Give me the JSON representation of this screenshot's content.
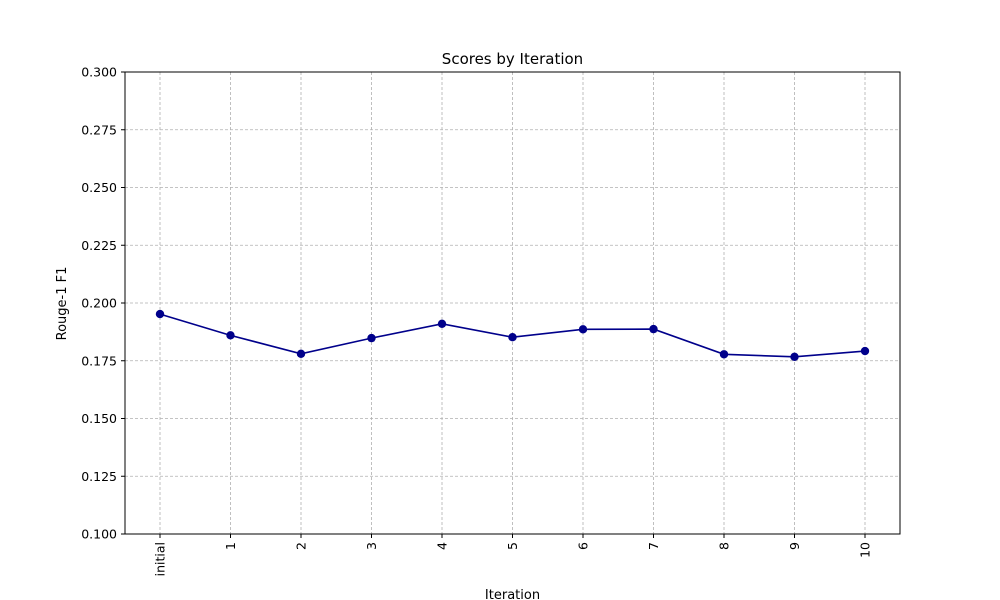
{
  "chart_data": {
    "type": "line",
    "title": "Scores by Iteration",
    "xlabel": "Iteration",
    "ylabel": "Rouge-1 F1",
    "categories": [
      "initial",
      "1",
      "2",
      "3",
      "4",
      "5",
      "6",
      "7",
      "8",
      "9",
      "10"
    ],
    "series": [
      {
        "values": [
          0.1952,
          0.186,
          0.178,
          0.1848,
          0.191,
          0.1852,
          0.1886,
          0.1887,
          0.1778,
          0.1767,
          0.1792
        ]
      }
    ],
    "ylim": [
      0.1,
      0.3
    ],
    "yticks": [
      "0.100",
      "0.125",
      "0.150",
      "0.175",
      "0.200",
      "0.225",
      "0.250",
      "0.275",
      "0.300"
    ],
    "ytick_values": [
      0.1,
      0.125,
      0.15,
      0.175,
      0.2,
      0.225,
      0.25,
      0.275,
      0.3
    ],
    "grid": true,
    "legend": "none",
    "x_tick_rotation": "vertical",
    "colors": {
      "line": "#00008b",
      "marker": "#00008b",
      "grid": "#b0b0b0",
      "axis": "#000000"
    }
  }
}
